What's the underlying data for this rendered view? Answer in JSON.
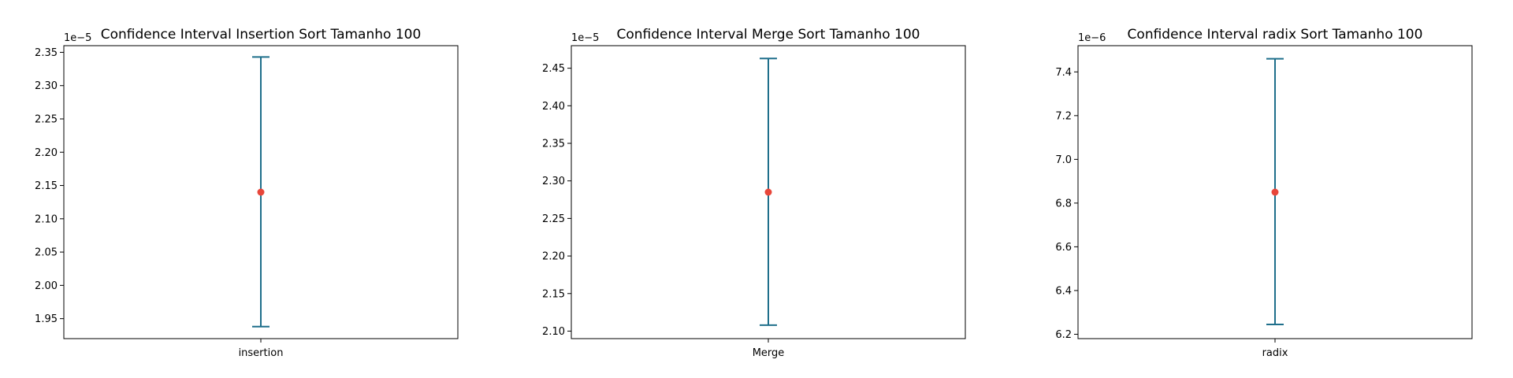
{
  "colors": {
    "errorbar": "#1f6f8b",
    "point": "#e8463a",
    "axes": "#000000",
    "background": "#ffffff"
  },
  "chart_data": [
    {
      "type": "scatter",
      "title": "Confidence Interval Insertion Sort Tamanho 100",
      "offset_text": "1e−5",
      "scale": 1e-05,
      "categories": [
        "insertion"
      ],
      "mean": 2.14,
      "ci_low": 1.938,
      "ci_high": 2.343,
      "ylim": [
        1.92,
        2.36
      ],
      "yticks": [
        "1.95",
        "2.00",
        "2.05",
        "2.10",
        "2.15",
        "2.20",
        "2.25",
        "2.30",
        "2.35"
      ],
      "grid": false
    },
    {
      "type": "scatter",
      "title": "Confidence Interval Merge Sort Tamanho 100",
      "offset_text": "1e−5",
      "scale": 1e-05,
      "categories": [
        "Merge"
      ],
      "mean": 2.285,
      "ci_low": 2.108,
      "ci_high": 2.463,
      "ylim": [
        2.09,
        2.48
      ],
      "yticks": [
        "2.10",
        "2.15",
        "2.20",
        "2.25",
        "2.30",
        "2.35",
        "2.40",
        "2.45"
      ],
      "grid": false
    },
    {
      "type": "scatter",
      "title": "Confidence Interval radix Sort Tamanho 100",
      "offset_text": "1e−6",
      "scale": 1e-06,
      "categories": [
        "radix"
      ],
      "mean": 6.85,
      "ci_low": 6.245,
      "ci_high": 7.46,
      "ylim": [
        6.18,
        7.52
      ],
      "yticks": [
        "6.2",
        "6.4",
        "6.6",
        "6.8",
        "7.0",
        "7.2",
        "7.4"
      ],
      "grid": false
    }
  ]
}
